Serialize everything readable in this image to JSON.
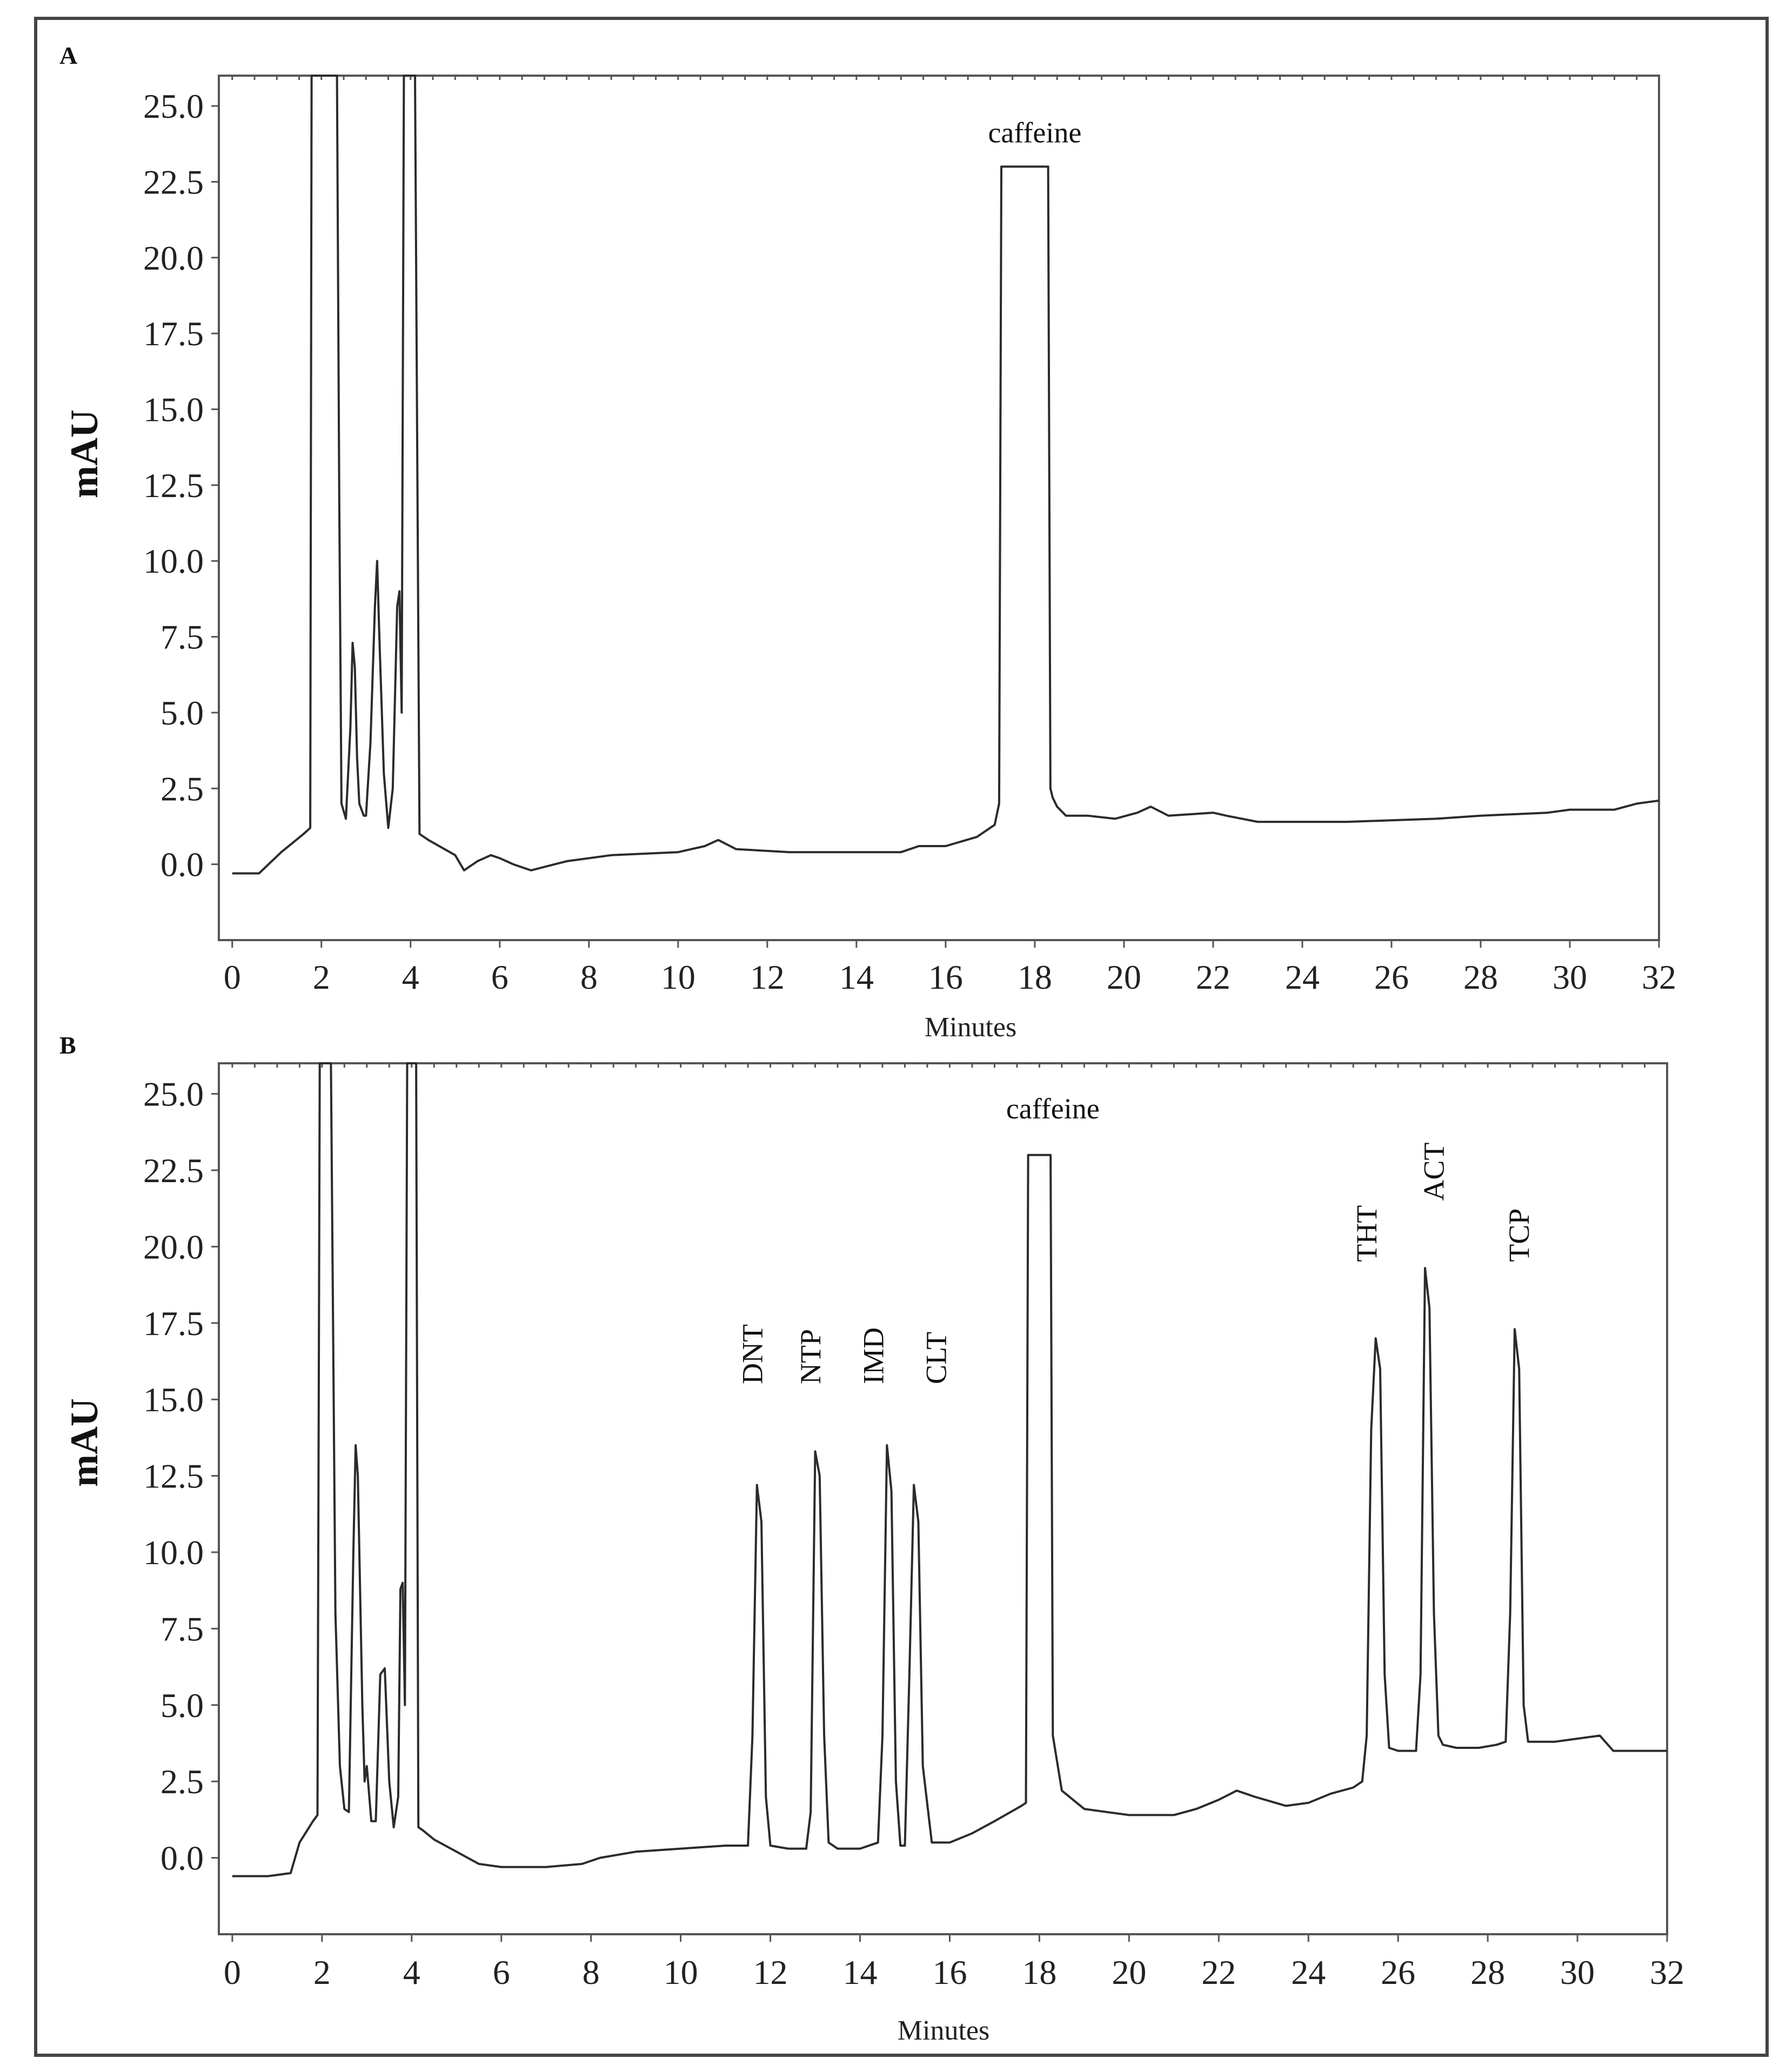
{
  "chart_data": [
    {
      "type": "line",
      "panel": "A",
      "xlabel": "Minutes",
      "ylabel": "mAU",
      "xlim": [
        -0.3,
        32
      ],
      "ylim": [
        -2.5,
        26
      ],
      "x_ticks": [
        0,
        2,
        4,
        6,
        8,
        10,
        12,
        14,
        16,
        18,
        20,
        22,
        24,
        26,
        28,
        30,
        32
      ],
      "y_ticks": [
        "0.0",
        "2.5",
        "5.0",
        "7.5",
        "10.0",
        "12.5",
        "15.0",
        "17.5",
        "20.0",
        "22.5",
        "25.0"
      ],
      "grid": false,
      "series": [
        {
          "x": [
            0,
            0.6,
            1.1,
            1.6,
            1.75,
            1.78,
            1.9,
            2.35,
            2.4,
            2.45,
            2.55,
            2.65,
            2.7,
            2.75,
            2.8,
            2.85,
            2.95,
            3.0,
            3.1,
            3.2,
            3.25,
            3.3,
            3.4,
            3.5,
            3.6,
            3.7,
            3.75,
            3.8,
            3.85,
            3.9,
            4.0,
            4.1,
            4.2,
            4.4,
            5.0,
            5.2,
            5.5,
            5.8,
            6.0,
            6.3,
            6.7,
            7.5,
            8.5,
            10.0,
            10.6,
            10.9,
            11.3,
            12.5,
            14.0,
            15.0,
            15.4,
            16.0,
            16.7,
            17.1,
            17.2,
            17.25,
            17.3,
            17.35,
            18.25,
            18.3,
            18.35,
            18.4,
            18.5,
            18.7,
            19.2,
            19.8,
            20.3,
            20.6,
            21.0,
            22.0,
            22.3,
            23.0,
            23.5,
            25.0,
            27.0,
            28.0,
            29.5,
            30.0,
            31.0,
            31.5,
            32.0
          ],
          "y": [
            -0.3,
            -0.3,
            0.4,
            1.0,
            1.2,
            26.0,
            26.0,
            26.0,
            12.0,
            2.0,
            1.5,
            4.5,
            7.3,
            6.5,
            3.5,
            2.0,
            1.6,
            1.6,
            4.0,
            8.5,
            10.0,
            7.5,
            3.0,
            1.2,
            2.5,
            8.5,
            9.0,
            5.0,
            26.0,
            26.0,
            26.0,
            26.0,
            1.0,
            0.8,
            0.3,
            -0.2,
            0.1,
            0.3,
            0.2,
            0.0,
            -0.2,
            0.1,
            0.3,
            0.4,
            0.6,
            0.8,
            0.5,
            0.4,
            0.4,
            0.4,
            0.6,
            0.6,
            0.9,
            1.3,
            2.0,
            23.0,
            23.0,
            23.0,
            23.0,
            23.0,
            2.5,
            2.2,
            1.9,
            1.6,
            1.6,
            1.5,
            1.7,
            1.9,
            1.6,
            1.7,
            1.6,
            1.4,
            1.4,
            1.4,
            1.5,
            1.6,
            1.7,
            1.8,
            1.8,
            2.0,
            2.1
          ]
        }
      ],
      "annotations": [
        {
          "text": "caffeine",
          "x": 18.0,
          "y": 23.8
        }
      ]
    },
    {
      "type": "line",
      "panel": "B",
      "xlabel": "Minutes",
      "ylabel": "mAU",
      "xlim": [
        -0.3,
        32
      ],
      "ylim": [
        -2.5,
        26
      ],
      "x_ticks": [
        0,
        2,
        4,
        6,
        8,
        10,
        12,
        14,
        16,
        18,
        20,
        22,
        24,
        26,
        28,
        30,
        32
      ],
      "y_ticks": [
        "0.0",
        "2.5",
        "5.0",
        "7.5",
        "10.0",
        "12.5",
        "15.0",
        "17.5",
        "20.0",
        "22.5",
        "25.0"
      ],
      "grid": false,
      "series": [
        {
          "x": [
            0,
            0.8,
            1.3,
            1.5,
            1.8,
            1.9,
            1.95,
            2.2,
            2.3,
            2.4,
            2.5,
            2.6,
            2.7,
            2.75,
            2.8,
            2.9,
            2.95,
            3.0,
            3.1,
            3.2,
            3.3,
            3.4,
            3.5,
            3.6,
            3.7,
            3.75,
            3.8,
            3.85,
            3.9,
            4.05,
            4.1,
            4.15,
            4.25,
            4.5,
            5.0,
            5.5,
            6.0,
            7.0,
            7.8,
            8.2,
            9.0,
            10.0,
            11.0,
            11.5,
            11.6,
            11.7,
            11.8,
            11.9,
            12.0,
            12.4,
            12.8,
            12.9,
            13.0,
            13.1,
            13.2,
            13.3,
            13.5,
            14.0,
            14.4,
            14.5,
            14.6,
            14.7,
            14.8,
            14.9,
            15.0,
            15.1,
            15.2,
            15.3,
            15.4,
            15.6,
            16.0,
            16.5,
            17.0,
            17.6,
            17.7,
            17.75,
            17.8,
            17.85,
            18.15,
            18.2,
            18.25,
            18.3,
            18.5,
            19.0,
            19.5,
            20.0,
            21.0,
            21.5,
            22.0,
            22.4,
            22.8,
            23.5,
            24.0,
            24.5,
            25.0,
            25.2,
            25.3,
            25.4,
            25.5,
            25.6,
            25.7,
            25.8,
            26.0,
            26.4,
            26.5,
            26.6,
            26.7,
            26.8,
            26.9,
            27.0,
            27.3,
            27.8,
            28.2,
            28.4,
            28.5,
            28.6,
            28.7,
            28.8,
            28.9,
            29.1,
            29.5,
            30.0,
            30.5,
            30.8,
            31.2,
            32.0
          ],
          "y": [
            -0.6,
            -0.6,
            -0.5,
            0.5,
            1.2,
            1.4,
            26.0,
            26.0,
            8.0,
            3.0,
            1.6,
            1.5,
            10.0,
            13.5,
            12.5,
            5.0,
            2.5,
            3.0,
            1.2,
            1.2,
            6.0,
            6.2,
            2.5,
            1.0,
            2.0,
            8.8,
            9.0,
            5.0,
            26.0,
            26.0,
            26.0,
            1.0,
            0.9,
            0.6,
            0.2,
            -0.2,
            -0.3,
            -0.3,
            -0.2,
            0.0,
            0.2,
            0.3,
            0.4,
            0.4,
            4.0,
            12.2,
            11.0,
            2.0,
            0.4,
            0.3,
            0.3,
            1.5,
            13.3,
            12.5,
            4.0,
            0.5,
            0.3,
            0.3,
            0.5,
            4.0,
            13.5,
            12.0,
            2.5,
            0.4,
            0.4,
            6.0,
            12.2,
            11.0,
            3.0,
            0.5,
            0.5,
            0.8,
            1.2,
            1.7,
            1.8,
            23.0,
            23.0,
            23.0,
            23.0,
            23.0,
            23.0,
            4.0,
            2.2,
            1.6,
            1.5,
            1.4,
            1.4,
            1.6,
            1.9,
            2.2,
            2.0,
            1.7,
            1.8,
            2.1,
            2.3,
            2.5,
            4.0,
            14.0,
            17.0,
            16.0,
            6.0,
            3.6,
            3.5,
            3.5,
            6.0,
            19.3,
            18.0,
            8.0,
            4.0,
            3.7,
            3.6,
            3.6,
            3.7,
            3.8,
            8.0,
            17.3,
            16.0,
            5.0,
            3.8,
            3.8,
            3.8,
            3.9,
            4.0,
            3.5,
            3.5,
            3.5
          ]
        }
      ],
      "annotations": [
        {
          "text": "caffeine",
          "x": 18.3,
          "y": 24.2
        },
        {
          "text": "DNT",
          "x": 11.6,
          "y": 15.5,
          "rotate": -90
        },
        {
          "text": "NTP",
          "x": 12.9,
          "y": 15.5,
          "rotate": -90
        },
        {
          "text": "IMD",
          "x": 14.3,
          "y": 15.5,
          "rotate": -90
        },
        {
          "text": "CLT",
          "x": 15.7,
          "y": 15.5,
          "rotate": -90
        },
        {
          "text": "THT",
          "x": 25.3,
          "y": 19.5,
          "rotate": -90
        },
        {
          "text": "ACT",
          "x": 26.8,
          "y": 21.5,
          "rotate": -90
        },
        {
          "text": "TCP",
          "x": 28.7,
          "y": 19.5,
          "rotate": -90
        }
      ]
    }
  ]
}
